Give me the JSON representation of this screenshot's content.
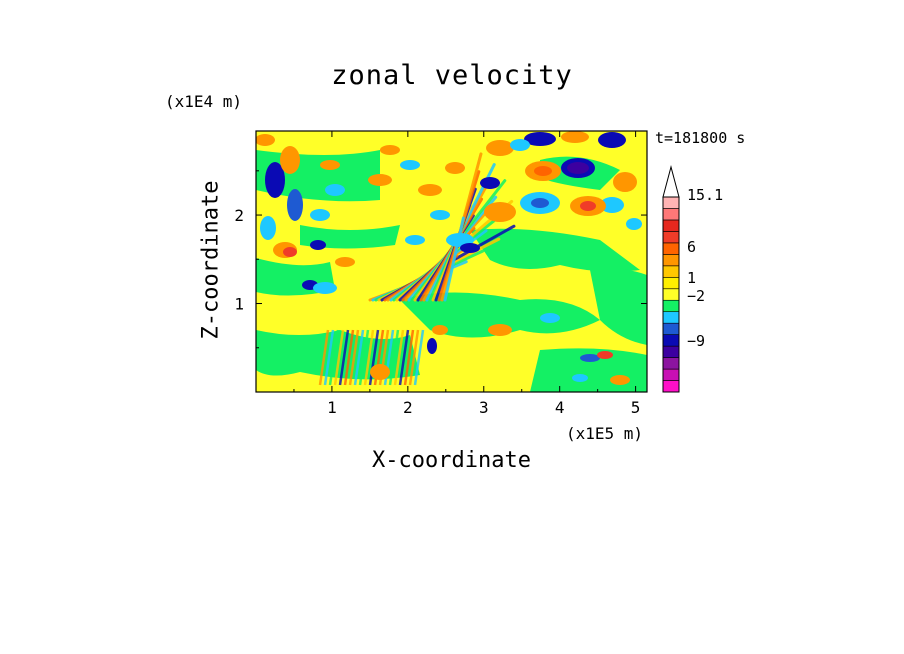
{
  "chart_data": {
    "type": "heatmap",
    "title": "zonal velocity",
    "xlabel": "X-coordinate",
    "ylabel": "Z-coordinate",
    "x_unit": "(x1E5 m)",
    "y_unit": "(x1E4 m)",
    "time_label": "t=181800 s",
    "xlim": [
      0,
      5.15
    ],
    "ylim": [
      0,
      2.95
    ],
    "x_ticks": [
      1,
      2,
      3,
      4,
      5
    ],
    "y_ticks": [
      1,
      2
    ],
    "colorbar": {
      "tick_labels": [
        "15.1",
        "6",
        "1",
        "−2",
        "−9"
      ],
      "tick_values": [
        15.1,
        6,
        1,
        -2,
        -9
      ],
      "colors_bottom_to_top": [
        "#ff10c8",
        "#c810b4",
        "#8c14a0",
        "#3c00a0",
        "#0a0ab4",
        "#1e5ad2",
        "#1ec8ff",
        "#14f064",
        "#ffff28",
        "#fff000",
        "#ffc800",
        "#ff9600",
        "#ff6400",
        "#f03c28",
        "#e6281e",
        "#ff7878",
        "#ffb4b4"
      ],
      "extend": "max"
    },
    "field_values": {
      "strong_negative_near": -6,
      "strong_positive_near": 5,
      "background": "near 0 (yellow/green)"
    }
  }
}
